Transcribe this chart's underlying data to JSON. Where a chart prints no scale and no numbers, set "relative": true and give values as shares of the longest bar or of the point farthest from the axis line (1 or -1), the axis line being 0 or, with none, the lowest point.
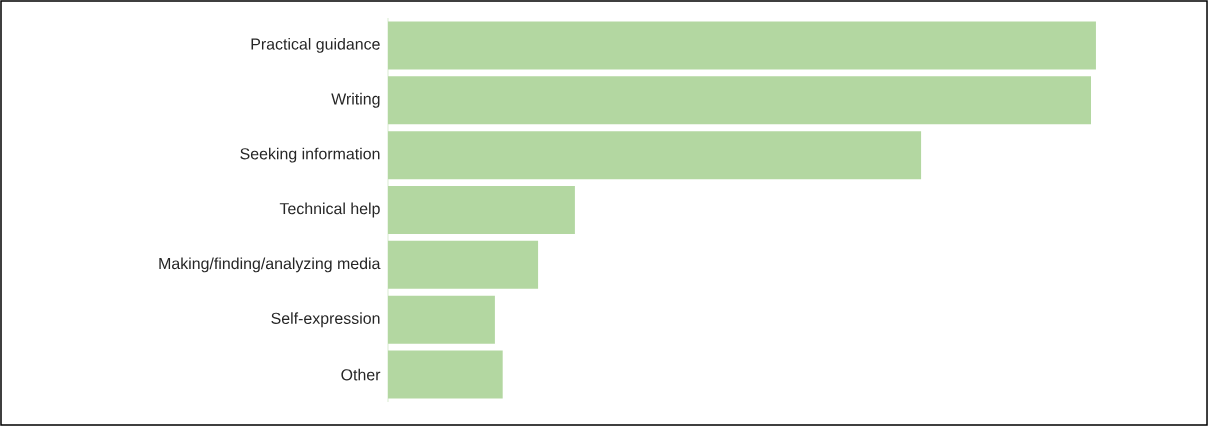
{
  "chart_data": {
    "type": "bar",
    "orientation": "horizontal",
    "relative": true,
    "color": "#b3d7a1",
    "categories": [
      "Practical guidance",
      "Writing",
      "Seeking information",
      "Technical help",
      "Making/finding/analyzing media",
      "Self-expression",
      "Other"
    ],
    "values": [
      1,
      0.993,
      0.753,
      0.264,
      0.212,
      0.151,
      0.162
    ]
  }
}
